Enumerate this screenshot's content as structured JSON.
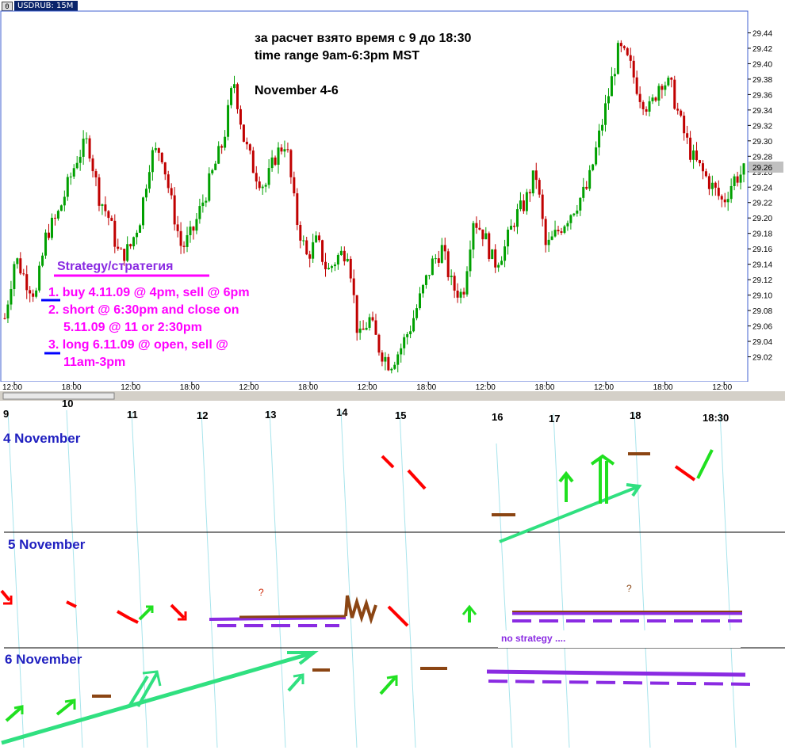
{
  "window": {
    "title": "USDRUB: 15M",
    "icon": "chart-window-icon"
  },
  "annotations": {
    "header_ru": "за расчет взято время с 9 до 18:30",
    "header_en": "time range 9am-6:3pm MST",
    "dates": "November 4-6",
    "strategy_title": "Strategy/стратегия",
    "steps": [
      "1. buy 4.11.09 @ 4pm, sell @ 6pm",
      "2. short @ 6:30pm and close on",
      "5.11.09 @ 11 or 2:30pm",
      "3. long 6.11.09 @ open, sell @",
      "11am-3pm"
    ]
  },
  "colors": {
    "up": "#00a000",
    "down": "#c00000",
    "pink": "#ff00ff",
    "purple": "#8a2be2",
    "blue": "#0000ff",
    "label_blue": "#2020c0",
    "teal": "#30e080",
    "brown": "#8b4513",
    "red": "#ff0000",
    "green": "#20e020"
  },
  "chart_data": {
    "type": "candlestick",
    "symbol": "USDRUB",
    "timeframe": "15M",
    "ylim": [
      29.0,
      29.46
    ],
    "y_ticks": [
      "29.44",
      "29.42",
      "29.40",
      "29.38",
      "29.36",
      "29.34",
      "29.32",
      "29.30",
      "29.28",
      "29.26",
      "29.24",
      "29.22",
      "29.20",
      "29.18",
      "29.16",
      "29.14",
      "29.12",
      "29.10",
      "29.08",
      "29.06",
      "29.04",
      "29.02"
    ],
    "x_ticks": [
      "12:00",
      "18:00",
      "12:00",
      "18:00",
      "12:00",
      "18:00",
      "12:00",
      "18:00",
      "12:00",
      "18:00",
      "12:00",
      "18:00",
      "12:00"
    ],
    "current_price": "29.26",
    "close_path": [
      29.07,
      29.15,
      29.12,
      29.1,
      29.18,
      29.2,
      29.24,
      29.28,
      29.3,
      29.23,
      29.2,
      29.15,
      29.16,
      29.2,
      29.28,
      29.29,
      29.22,
      29.16,
      29.18,
      29.22,
      29.26,
      29.3,
      29.38,
      29.3,
      29.26,
      29.24,
      29.28,
      29.3,
      29.2,
      29.15,
      29.17,
      29.13,
      29.15,
      29.16,
      29.04,
      29.07,
      29.03,
      29.01,
      29.03,
      29.06,
      29.1,
      29.14,
      29.16,
      29.11,
      29.1,
      29.2,
      29.18,
      29.14,
      29.16,
      29.2,
      29.22,
      29.26,
      29.16,
      29.18,
      29.2,
      29.22,
      29.24,
      29.3,
      29.36,
      29.42,
      29.4,
      29.36,
      29.34,
      29.38,
      29.37,
      29.32,
      29.28,
      29.26,
      29.24,
      29.22,
      29.25,
      29.26
    ]
  },
  "timeline": {
    "hours": [
      "9",
      "10",
      "11",
      "12",
      "13",
      "14",
      "15",
      "16",
      "17",
      "18",
      "18:30"
    ],
    "rows": [
      "4 November",
      "5 November",
      "6 November"
    ],
    "question_mark": "?",
    "no_strategy": "no strategy ...."
  }
}
